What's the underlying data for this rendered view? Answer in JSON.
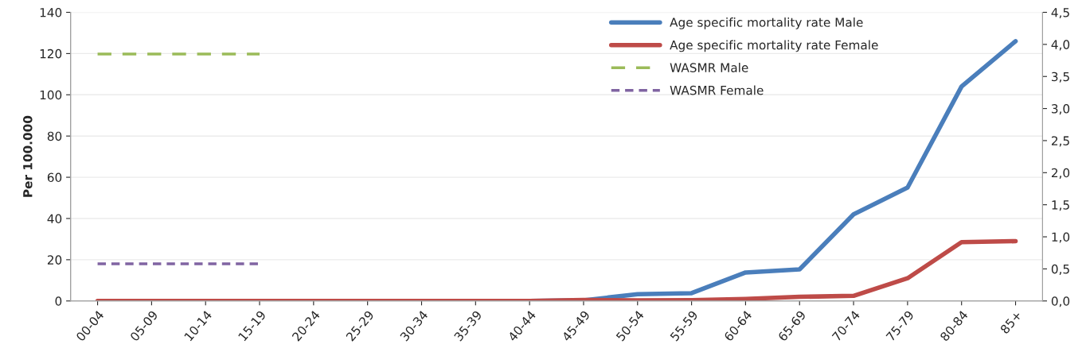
{
  "chart_data": {
    "type": "line",
    "ylabel": "Per 100.000",
    "categories": [
      "00-04",
      "05-09",
      "10-14",
      "15-19",
      "20-24",
      "25-29",
      "30-34",
      "35-39",
      "40-44",
      "45-49",
      "50-54",
      "55-59",
      "60-64",
      "65-69",
      "70-74",
      "75-79",
      "80-84",
      "85+"
    ],
    "series": [
      {
        "name": "Age specific mortality rate Male",
        "color": "#4a7ebb",
        "line_style": "solid",
        "values": [
          null,
          null,
          null,
          null,
          null,
          null,
          null,
          null,
          0,
          0.3,
          3.3,
          3.8,
          13.8,
          15.3,
          42,
          55,
          104,
          126
        ]
      },
      {
        "name": "Age specific mortality rate Female",
        "color": "#be4b48",
        "line_style": "solid",
        "values": [
          0,
          0,
          0,
          0,
          0,
          0,
          0,
          0,
          0,
          0.5,
          0.3,
          0.4,
          1,
          2,
          2.5,
          11,
          28.5,
          29
        ]
      },
      {
        "name": "WASMR Male",
        "color": "#9bbb59",
        "line_style": "dashed",
        "axis": "y2",
        "values": [
          3.85,
          3.85,
          3.85,
          3.85,
          null,
          null,
          null,
          null,
          null,
          null,
          null,
          null,
          null,
          null,
          null,
          null,
          null,
          null
        ]
      },
      {
        "name": "WASMR Female",
        "color": "#8064a2",
        "line_style": "dotted",
        "axis": "y2",
        "values": [
          0.58,
          0.58,
          0.58,
          0.58,
          null,
          null,
          null,
          null,
          null,
          null,
          null,
          null,
          null,
          null,
          null,
          null,
          null,
          null
        ]
      }
    ],
    "ylim": [
      0,
      140
    ],
    "yticks": [
      0,
      20,
      40,
      60,
      80,
      100,
      120,
      140
    ],
    "y2lim": [
      0,
      4.5
    ],
    "y2ticks": [
      {
        "value": 0,
        "label": "0,0"
      },
      {
        "value": 0.5,
        "label": "0,5"
      },
      {
        "value": 1,
        "label": "1,0"
      },
      {
        "value": 1.5,
        "label": "1,5"
      },
      {
        "value": 2,
        "label": "2,0"
      },
      {
        "value": 2.5,
        "label": "2,5"
      },
      {
        "value": 3,
        "label": "3,0"
      },
      {
        "value": 3.5,
        "label": "3,5"
      },
      {
        "value": 4,
        "label": "4,0"
      },
      {
        "value": 4.5,
        "label": "4,5"
      }
    ],
    "grid": "y",
    "legend": "top right"
  }
}
